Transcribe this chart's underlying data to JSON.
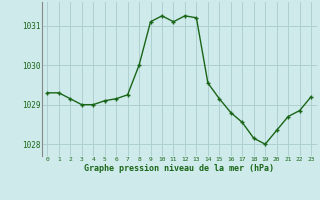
{
  "x": [
    0,
    1,
    2,
    3,
    4,
    5,
    6,
    7,
    8,
    9,
    10,
    11,
    12,
    13,
    14,
    15,
    16,
    17,
    18,
    19,
    20,
    21,
    22,
    23
  ],
  "y": [
    1029.3,
    1029.3,
    1029.15,
    1029.0,
    1029.0,
    1029.1,
    1029.15,
    1029.25,
    1030.0,
    1031.1,
    1031.25,
    1031.1,
    1031.25,
    1031.2,
    1029.55,
    1029.15,
    1028.8,
    1028.55,
    1028.15,
    1028.0,
    1028.35,
    1028.7,
    1028.85,
    1029.2
  ],
  "line_color": "#1a6618",
  "marker_color": "#1a6618",
  "bg_color": "#ceeaea",
  "grid_color": "#aed0d0",
  "xlabel": "Graphe pression niveau de la mer (hPa)",
  "xlabel_color": "#1a6618",
  "tick_color": "#1a6618",
  "ylim": [
    1027.7,
    1031.6
  ],
  "yticks": [
    1028,
    1029,
    1030,
    1031
  ],
  "xticks": [
    0,
    1,
    2,
    3,
    4,
    5,
    6,
    7,
    8,
    9,
    10,
    11,
    12,
    13,
    14,
    15,
    16,
    17,
    18,
    19,
    20,
    21,
    22,
    23
  ],
  "left_spine_color": "#888888",
  "marker_size": 3.5,
  "linewidth": 1.0
}
